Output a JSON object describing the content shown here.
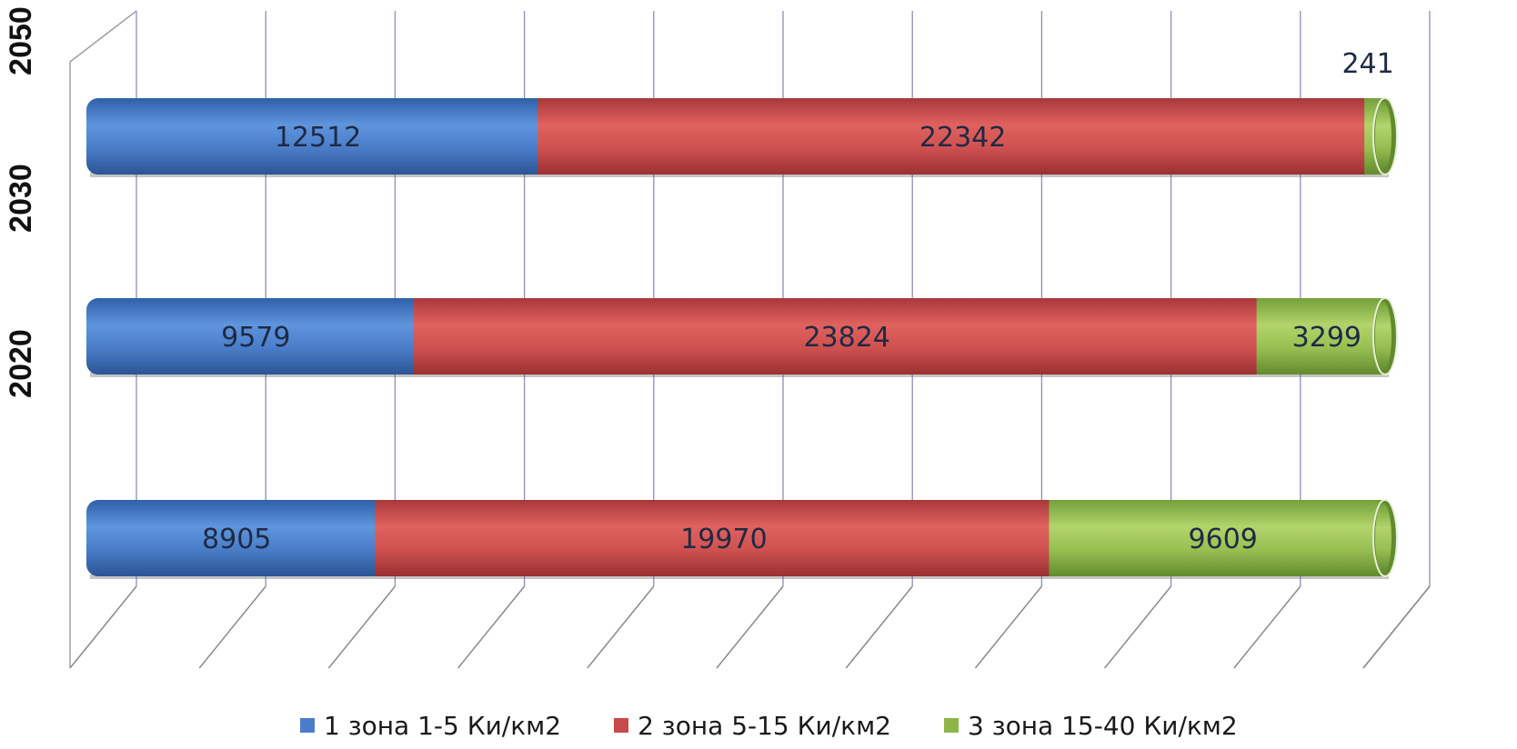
{
  "chart_data": {
    "type": "bar",
    "orientation": "horizontal",
    "stacked": true,
    "style": "3d-cylinder",
    "categories": [
      "",
      "2020",
      "2030",
      "2050"
    ],
    "series": [
      {
        "name": "1 зона 1-5 Ки/км2",
        "color": "#4a7dc9",
        "values": [
          8905,
          9579,
          12512,
          null
        ]
      },
      {
        "name": "2 зона 5-15 Ки/км2",
        "color": "#c8494a",
        "values": [
          19970,
          23824,
          22342,
          null
        ]
      },
      {
        "name": "3 зона 15-40 Ки/км2",
        "color": "#8db548",
        "values": [
          9609,
          3299,
          241,
          null
        ]
      }
    ],
    "data_labels": [
      [
        "8905",
        "19970",
        "9609"
      ],
      [
        "9579",
        "23824",
        "3299"
      ],
      [
        "12512",
        "22342",
        "241"
      ]
    ],
    "grid": true,
    "legend_position": "bottom"
  }
}
